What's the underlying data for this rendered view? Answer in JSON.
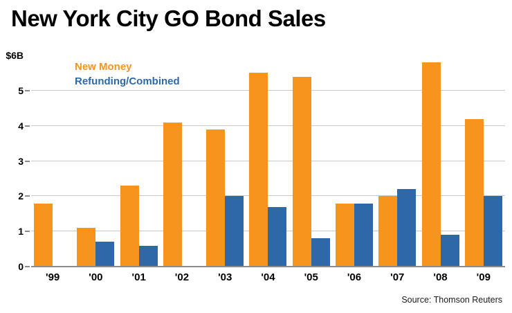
{
  "chart_data": {
    "type": "bar",
    "title": "New York City GO Bond Sales",
    "categories": [
      "'99",
      "'00",
      "'01",
      "'02",
      "'03",
      "'04",
      "'05",
      "'06",
      "'07",
      "'08",
      "'09"
    ],
    "series": [
      {
        "name": "New Money",
        "color": "#F7941E",
        "values": [
          1.8,
          1.1,
          2.3,
          4.1,
          3.9,
          5.5,
          5.4,
          1.8,
          2.0,
          5.8,
          4.2
        ]
      },
      {
        "name": "Refunding/Combined",
        "color": "#2E68A8",
        "values": [
          0,
          0.7,
          0.6,
          0,
          2.0,
          1.7,
          0.8,
          1.8,
          2.2,
          0.9,
          2.0
        ]
      }
    ],
    "ylim": [
      0,
      6
    ],
    "yticks": [
      {
        "value": 0,
        "label": "0"
      },
      {
        "value": 1,
        "label": "1"
      },
      {
        "value": 2,
        "label": "2"
      },
      {
        "value": 3,
        "label": "3"
      },
      {
        "value": 4,
        "label": "4"
      },
      {
        "value": 5,
        "label": "5"
      },
      {
        "value": 6,
        "label": "$6B"
      }
    ],
    "gridlines": [
      1,
      2,
      3,
      4,
      5
    ],
    "legend_position": "top-left",
    "grid": true,
    "source": "Source: Thomson Reuters"
  },
  "colors": {
    "new_money": "#F7941E",
    "refunding_combined": "#2E68A8",
    "gridline": "#c9c9c9",
    "axis": "#8b8b8b"
  }
}
